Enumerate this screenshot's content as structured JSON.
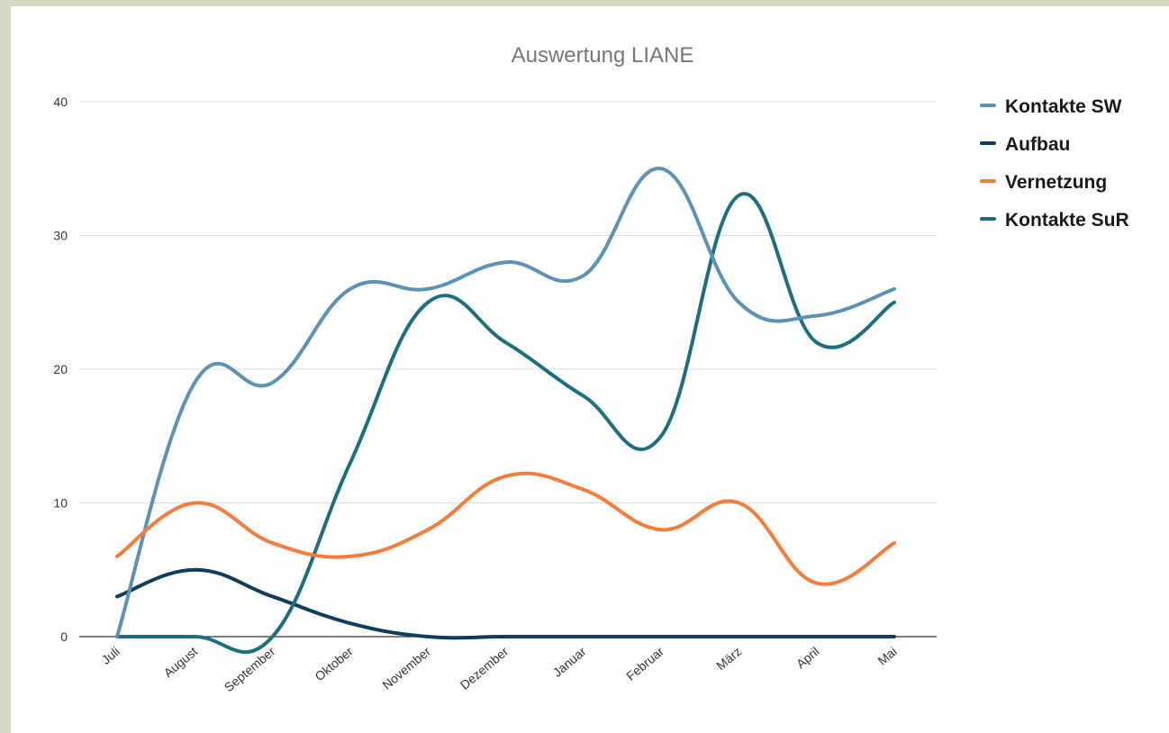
{
  "chart_data": {
    "type": "line",
    "title": "Auswertung LIANE",
    "xlabel": "",
    "ylabel": "",
    "ylim": [
      0,
      40
    ],
    "yticks": [
      "0",
      "10",
      "20",
      "30",
      "40"
    ],
    "grid": true,
    "legend_position": "right",
    "categories": [
      "Juli",
      "August",
      "September",
      "Oktober",
      "November",
      "Dezember",
      "Januar",
      "Februar",
      "März",
      "April",
      "Mai"
    ],
    "series": [
      {
        "name": "Kontakte SW",
        "color": "#5b92b5",
        "values": [
          0,
          19,
          19,
          26,
          26,
          28,
          27,
          35,
          25,
          24,
          26
        ]
      },
      {
        "name": "Aufbau",
        "color": "#0e3e5c",
        "values": [
          3,
          5,
          3,
          1,
          0,
          0,
          0,
          0,
          0,
          0,
          0
        ]
      },
      {
        "name": "Vernetzung",
        "color": "#f47c3c",
        "values": [
          6,
          10,
          7,
          6,
          8,
          12,
          11,
          8,
          10,
          4,
          7
        ]
      },
      {
        "name": "Kontakte SuR",
        "color": "#1d6f80",
        "values": [
          0,
          0,
          0,
          13,
          25,
          22,
          18,
          15,
          33,
          22,
          25
        ]
      }
    ]
  }
}
